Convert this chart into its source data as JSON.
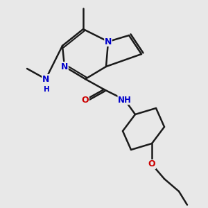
{
  "bg_color": "#e8e8e8",
  "atom_color_N": "#0000cc",
  "atom_color_O": "#cc0000",
  "atom_color_C": "#1a1a1a",
  "bond_color": "#1a1a1a",
  "bond_width": 1.8,
  "figsize": [
    3.0,
    3.0
  ],
  "dpi": 100,
  "xlim": [
    0,
    10
  ],
  "ylim": [
    0,
    10
  ]
}
